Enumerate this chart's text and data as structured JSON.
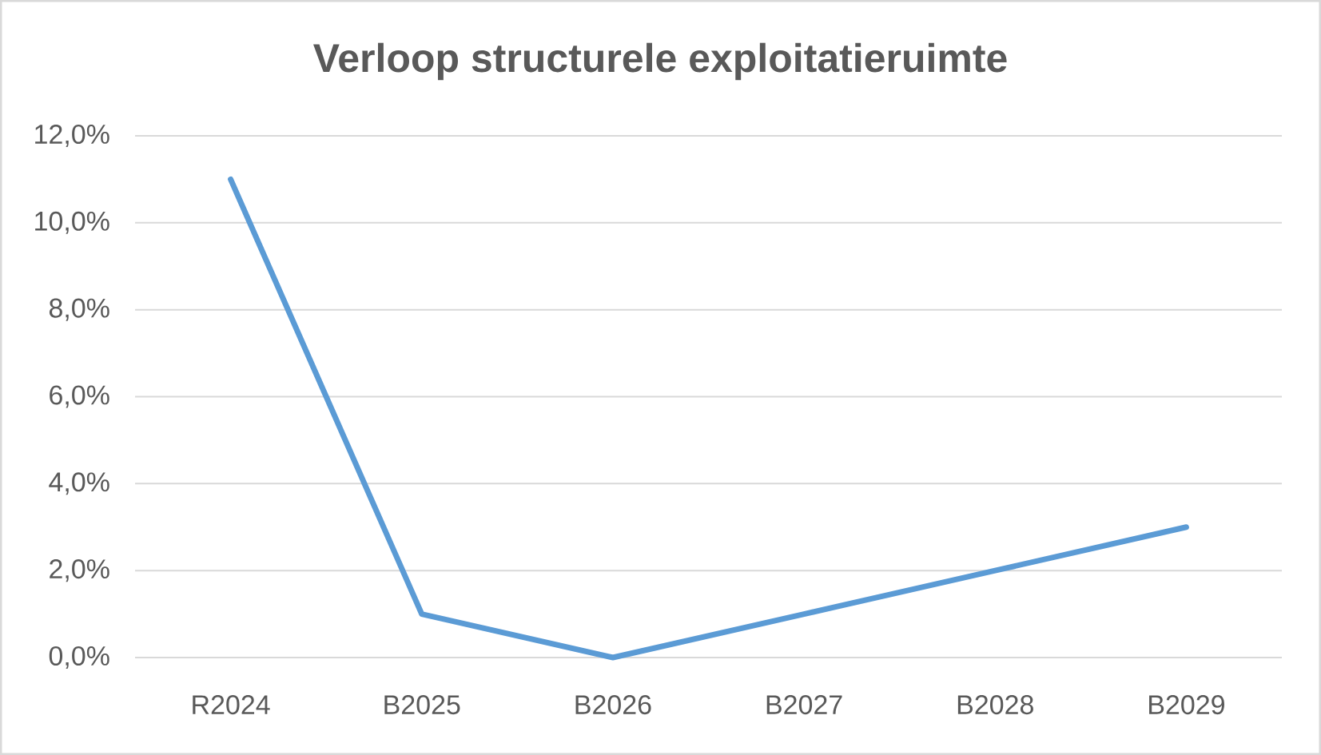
{
  "chart_data": {
    "type": "line",
    "title": "Verloop structurele exploitatieruimte",
    "categories": [
      "R2024",
      "B2025",
      "B2026",
      "B2027",
      "B2028",
      "B2029"
    ],
    "series": [
      {
        "color": "#5b9bd5",
        "values": [
          11.0,
          1.0,
          0.0,
          1.0,
          2.0,
          3.0
        ]
      }
    ],
    "ylim": [
      0,
      12
    ],
    "yticks": [
      {
        "value": 0,
        "label": "0,0%"
      },
      {
        "value": 2,
        "label": "2,0%"
      },
      {
        "value": 4,
        "label": "4,0%"
      },
      {
        "value": 6,
        "label": "6,0%"
      },
      {
        "value": 8,
        "label": "8,0%"
      },
      {
        "value": 10,
        "label": "10,0%"
      },
      {
        "value": 12,
        "label": "12,0%"
      }
    ],
    "grid": "y",
    "legend": false,
    "marker": "none",
    "line_style": "solid"
  }
}
